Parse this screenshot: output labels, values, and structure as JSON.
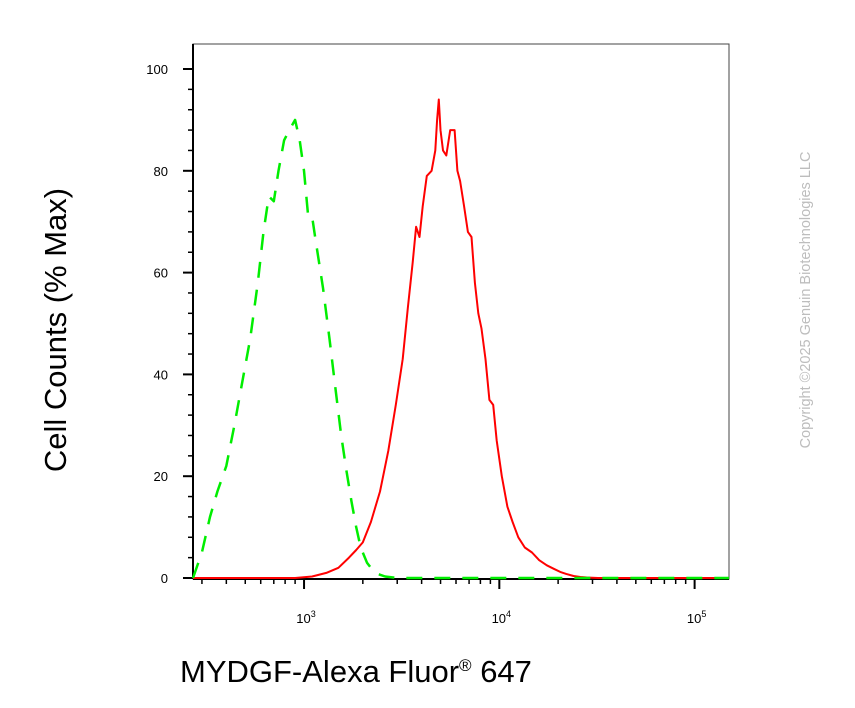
{
  "chart_data": {
    "type": "line",
    "xlabel_main": "MYDGF-Alexa Fluor",
    "xlabel_sup": "®",
    "xlabel_tail": " 647",
    "ylabel": "Cell Counts (% Max)",
    "x_scale": "log",
    "xlim": [
      270,
      150000
    ],
    "ylim": [
      0,
      105
    ],
    "y_ticks": [
      0,
      20,
      40,
      60,
      80,
      100
    ],
    "x_ticks": [
      {
        "value": 1000,
        "base": "10",
        "exp": "3"
      },
      {
        "value": 10000,
        "base": "10",
        "exp": "4"
      },
      {
        "value": 100000,
        "base": "10",
        "exp": "5"
      }
    ],
    "series": [
      {
        "color": "#ff0000",
        "dash": "solid",
        "x": [
          270,
          700,
          900,
          1100,
          1300,
          1500,
          1700,
          1850,
          2000,
          2200,
          2450,
          2700,
          2950,
          3200,
          3400,
          3600,
          3750,
          3900,
          4050,
          4250,
          4500,
          4700,
          4800,
          4900,
          5000,
          5150,
          5350,
          5600,
          5900,
          6100,
          6300,
          6600,
          6900,
          7200,
          7500,
          7800,
          8100,
          8500,
          8900,
          9300,
          9700,
          10300,
          11000,
          11700,
          12500,
          13500,
          14700,
          16000,
          17500,
          19000,
          20500,
          22000,
          24000,
          26000,
          28000,
          32000,
          50000,
          100000,
          150000
        ],
        "y": [
          0,
          0,
          0,
          0.3,
          1,
          2,
          4,
          5.5,
          7,
          11,
          17,
          25,
          34,
          43,
          53,
          62,
          69,
          67,
          73,
          79,
          80,
          84,
          90,
          94,
          88,
          84,
          83,
          88,
          88,
          80,
          78,
          73,
          68,
          67,
          58,
          52,
          49,
          43,
          35,
          34,
          27,
          20,
          14,
          11,
          8,
          6,
          5,
          3.5,
          2.5,
          1.8,
          1.2,
          0.8,
          0.4,
          0.2,
          0.1,
          0,
          0,
          0,
          0
        ]
      },
      {
        "color": "#00ee00",
        "dash": "dashed",
        "x": [
          270,
          300,
          330,
          360,
          400,
          440,
          480,
          530,
          580,
          620,
          660,
          700,
          740,
          790,
          840,
          900,
          950,
          1000,
          1050,
          1100,
          1150,
          1250,
          1350,
          1450,
          1550,
          1650,
          1750,
          1850,
          1950,
          2100,
          2300,
          2600,
          3000,
          4000,
          10000,
          150000
        ],
        "y": [
          0,
          5,
          12,
          17,
          22,
          30,
          38,
          47,
          58,
          68,
          75,
          74,
          80,
          86,
          88,
          90,
          86,
          80,
          71,
          71,
          66,
          57,
          47,
          37,
          28,
          21,
          15,
          10,
          6,
          3,
          1,
          0.3,
          0,
          0,
          0,
          0
        ]
      }
    ]
  },
  "copyright": "Copyright ©2025 Genuin Biotechnologies LLC"
}
